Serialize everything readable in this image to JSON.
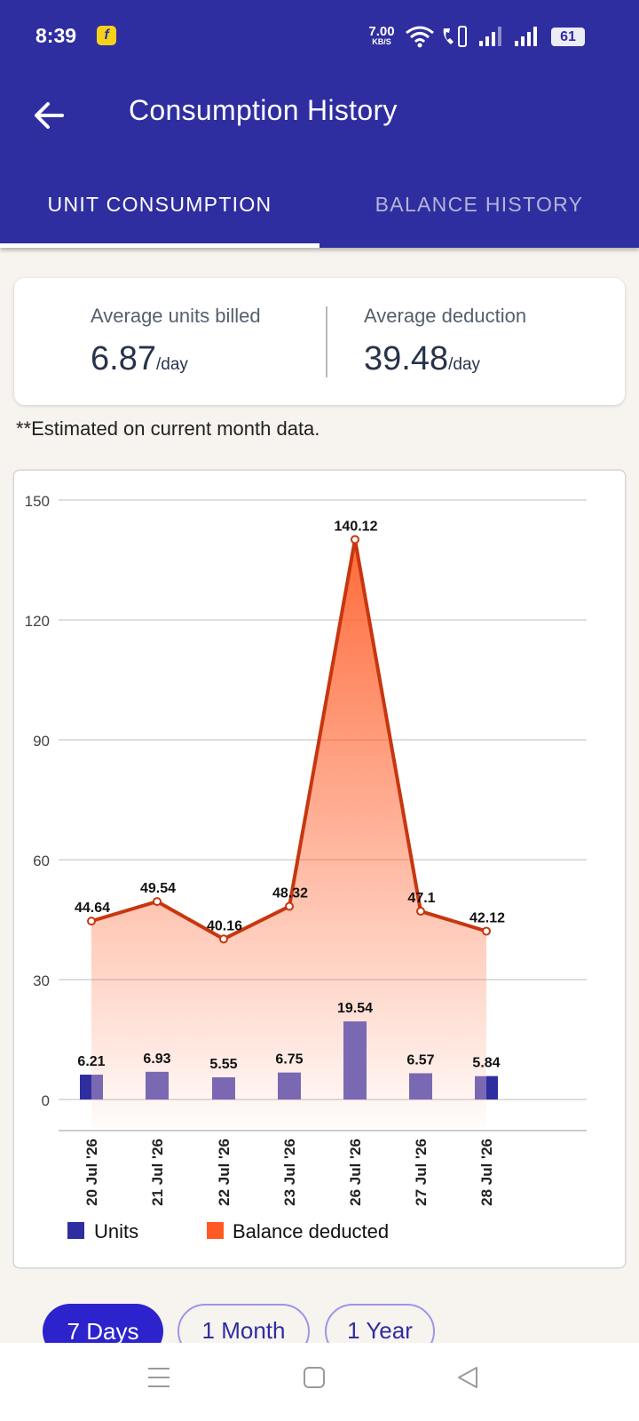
{
  "status_bar": {
    "time": "8:39",
    "app_badge": "f",
    "net_speed_value": "7.00",
    "net_speed_unit": "KB/S",
    "battery": "61",
    "icons": [
      "flipkart-badge-icon",
      "wifi-icon",
      "volte-icon",
      "signal-icon",
      "signal-icon",
      "battery-icon"
    ]
  },
  "header": {
    "title": "Consumption History",
    "back_icon": "arrow-left-icon"
  },
  "tabs": [
    {
      "label": "UNIT CONSUMPTION",
      "active": true
    },
    {
      "label": "BALANCE HISTORY",
      "active": false
    }
  ],
  "summary": {
    "units_label": "Average units billed",
    "units_value": "6.87",
    "units_suffix": "/day",
    "deduction_label": "Average deduction",
    "deduction_value": "39.48",
    "deduction_suffix": "/day"
  },
  "note": "**Estimated on current month data.",
  "chart_data": {
    "type": "bar",
    "categories": [
      "20 Jul '26",
      "21 Jul '26",
      "22 Jul '26",
      "23 Jul '26",
      "26 Jul '26",
      "27 Jul '26",
      "28 Jul '26"
    ],
    "series": [
      {
        "name": "Units",
        "type": "bar",
        "values": [
          6.21,
          6.93,
          5.55,
          6.75,
          19.54,
          6.57,
          5.84
        ],
        "color": "#2f2ea0",
        "bar_fill": "#7b68b3"
      },
      {
        "name": "Balance deducted",
        "type": "area",
        "values": [
          44.64,
          49.54,
          40.16,
          48.32,
          140.12,
          47.1,
          42.12
        ],
        "color": "#ff5a24",
        "line_color": "#c8360f"
      }
    ],
    "data_labels": {
      "units": [
        "6.21",
        "6.93",
        "5.55",
        "6.75",
        "19.54",
        "6.57",
        "5.84"
      ],
      "balance": [
        "44.64",
        "49.54",
        "40.16",
        "48.32",
        "140.12",
        "47.1",
        "42.12"
      ]
    },
    "y_ticks": [
      0,
      30,
      60,
      90,
      120,
      150
    ],
    "ylim": [
      0,
      150
    ],
    "grid": true,
    "legend_position": "bottom-left"
  },
  "ranges": [
    {
      "label": "7 Days",
      "active": true
    },
    {
      "label": "1 Month",
      "active": false
    },
    {
      "label": "1 Year",
      "active": false
    }
  ],
  "nav_bar": {
    "icons": [
      "menu-icon",
      "home-icon",
      "back-icon"
    ]
  }
}
